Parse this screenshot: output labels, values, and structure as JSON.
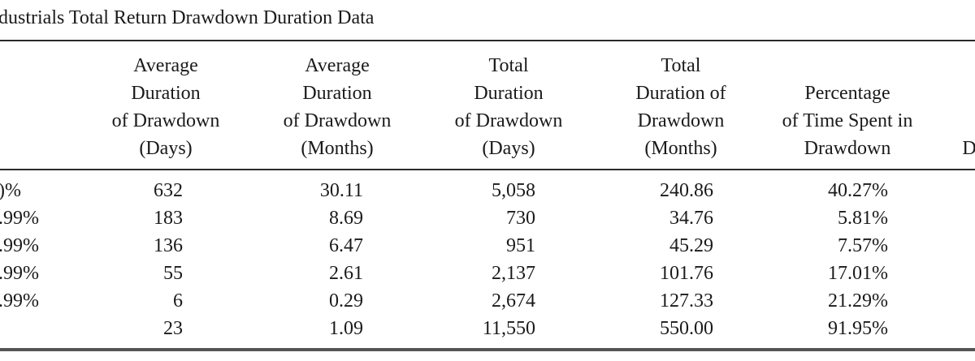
{
  "title": "dustrials Total Return Drawdown Duration Data",
  "headers": {
    "avg_days": [
      "Average",
      "Duration",
      "of Drawdown",
      "(Days)"
    ],
    "avg_months": [
      "Average",
      "Duration",
      "of Drawdown",
      "(Months)"
    ],
    "total_days": [
      "Total",
      "Duration",
      "of Drawdown",
      "(Days)"
    ],
    "total_months": [
      "Total",
      "Duration of",
      "Drawdown",
      "(Months)"
    ],
    "pct_time": [
      "Percentage",
      "of Time Spent in",
      "Drawdown"
    ],
    "last_partial": [
      "D"
    ]
  },
  "rows": [
    {
      "label": ")%",
      "avg_days": "632",
      "avg_months": "30.11",
      "total_days": "5,058",
      "total_months": "240.86",
      "pct_time": "40.27%"
    },
    {
      "label": ".99%",
      "avg_days": "183",
      "avg_months": "8.69",
      "total_days": "730",
      "total_months": "34.76",
      "pct_time": "5.81%"
    },
    {
      "label": ".99%",
      "avg_days": "136",
      "avg_months": "6.47",
      "total_days": "951",
      "total_months": "45.29",
      "pct_time": "7.57%"
    },
    {
      "label": ".99%",
      "avg_days": "55",
      "avg_months": "2.61",
      "total_days": "2,137",
      "total_months": "101.76",
      "pct_time": "17.01%"
    },
    {
      "label": ".99%",
      "avg_days": "6",
      "avg_months": "0.29",
      "total_days": "2,674",
      "total_months": "127.33",
      "pct_time": "21.29%"
    },
    {
      "label": "",
      "avg_days": "23",
      "avg_months": "1.09",
      "total_days": "11,550",
      "total_months": "550.00",
      "pct_time": "91.95%"
    }
  ]
}
